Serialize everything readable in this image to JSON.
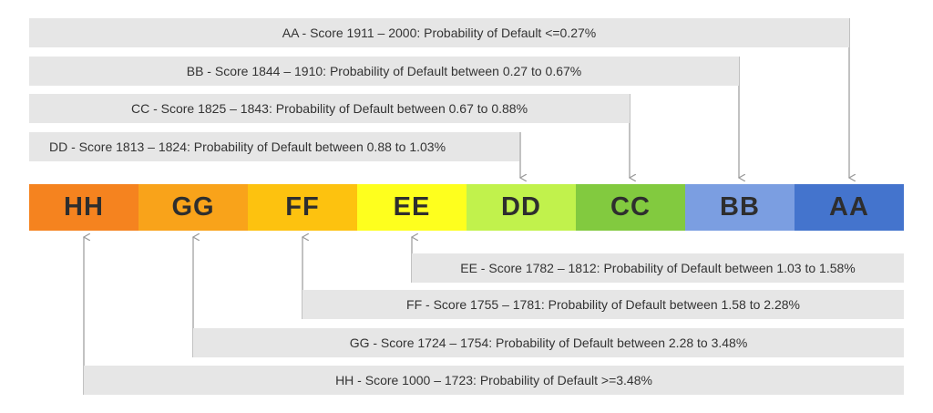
{
  "segments": [
    {
      "grade": "HH",
      "color": "#f5831f"
    },
    {
      "grade": "GG",
      "color": "#f9a31a"
    },
    {
      "grade": "FF",
      "color": "#fdc20f"
    },
    {
      "grade": "EE",
      "color": "#feff1e"
    },
    {
      "grade": "DD",
      "color": "#c1f24c"
    },
    {
      "grade": "CC",
      "color": "#82ca3f"
    },
    {
      "grade": "BB",
      "color": "#7b9ee1"
    },
    {
      "grade": "AA",
      "color": "#4474cd"
    }
  ],
  "labels": {
    "aa": "AA - Score 1911 – 2000: Probability of Default <=0.27%",
    "bb": "BB - Score 1844 – 1910: Probability of Default between 0.27 to 0.67%",
    "cc": "CC - Score 1825 – 1843: Probability of Default between 0.67 to 0.88%",
    "dd": "DD - Score 1813 – 1824: Probability of Default between 0.88 to 1.03%",
    "ee": "EE - Score 1782 – 1812: Probability of Default between 1.03 to 1.58%",
    "ff": "FF - Score 1755 – 1781: Probability of Default between 1.58 to 2.28%",
    "gg": "GG - Score 1724 – 1754: Probability of Default between 2.28 to 3.48%",
    "hh": "HH - Score 1000 – 1723: Probability of Default >=3.48%"
  },
  "connector_color": "#9a9a9a",
  "box_color": "#e6e6e6"
}
